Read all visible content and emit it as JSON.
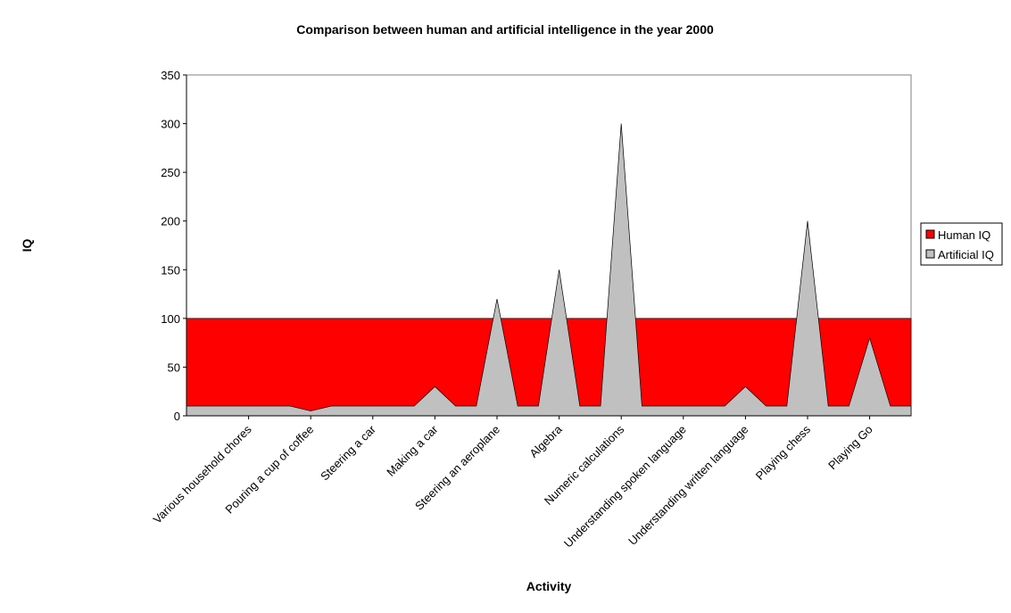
{
  "chart_data": {
    "type": "area",
    "title": "Comparison between human and artificial intelligence in the year 2000",
    "x_label": "Activity",
    "y_label": "IQ",
    "categories": [
      null,
      null,
      null,
      "Various household chores",
      null,
      null,
      "Pouring a cup of coffee",
      null,
      null,
      "Steering a car",
      null,
      null,
      "Making a car",
      null,
      null,
      "Steering an aeroplane",
      null,
      null,
      "Algebra",
      null,
      null,
      "Numeric calculations",
      null,
      null,
      "Understanding spoken language",
      null,
      null,
      "Understanding written language",
      null,
      null,
      "Playing chess",
      null,
      null,
      "Playing Go",
      null,
      null
    ],
    "series": [
      {
        "name": "Human IQ",
        "color": "#ff0000",
        "values": [
          100,
          100,
          100,
          100,
          100,
          100,
          100,
          100,
          100,
          100,
          100,
          100,
          100,
          100,
          100,
          100,
          100,
          100,
          100,
          100,
          100,
          100,
          100,
          100,
          100,
          100,
          100,
          100,
          100,
          100,
          100,
          100,
          100,
          100,
          100,
          100
        ]
      },
      {
        "name": "Artificial IQ",
        "color": "#c0c0c0",
        "values": [
          10,
          10,
          10,
          10,
          10,
          10,
          5,
          10,
          10,
          10,
          10,
          10,
          30,
          10,
          10,
          120,
          10,
          10,
          150,
          10,
          10,
          300,
          10,
          10,
          10,
          10,
          10,
          30,
          10,
          10,
          200,
          10,
          10,
          80,
          10,
          10
        ]
      }
    ],
    "ylim": [
      0,
      350
    ],
    "yticks": [
      0,
      50,
      100,
      150,
      200,
      250,
      300,
      350
    ],
    "legend": "right"
  }
}
